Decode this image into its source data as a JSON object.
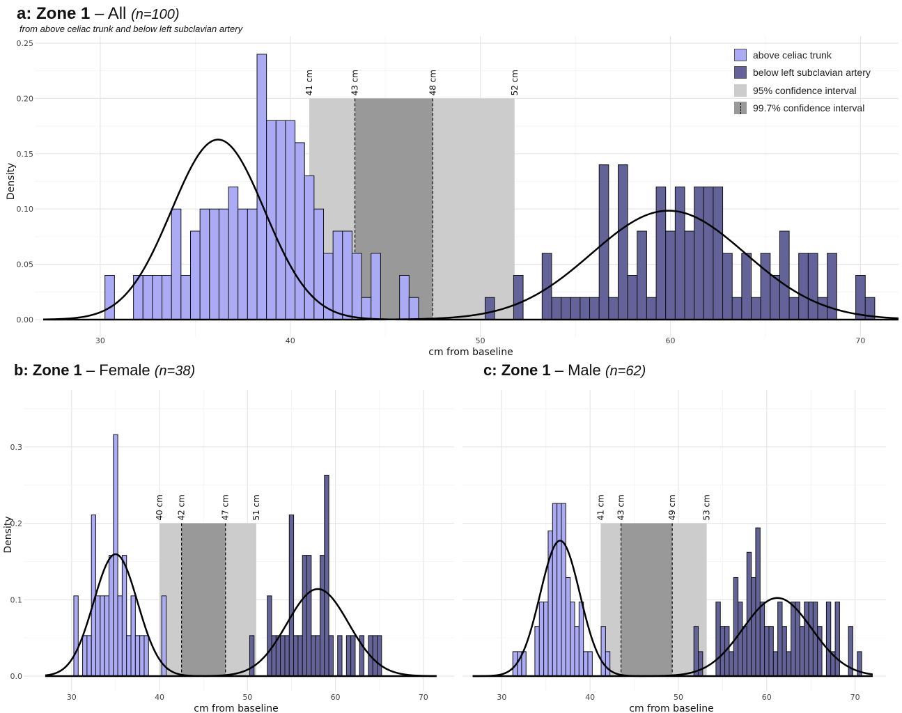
{
  "panels": {
    "a": {
      "label": "a:",
      "zone": "Zone 1",
      "dash": " – ",
      "group": "All",
      "n": "(n=100)",
      "subtitle": "from above celiac trunk and below left subclavian artery"
    },
    "b": {
      "label": "b:",
      "zone": "Zone 1",
      "dash": " – ",
      "group": "Female",
      "n": "(n=38)"
    },
    "c": {
      "label": "c:",
      "zone": "Zone 1",
      "dash": " – ",
      "group": "Male",
      "n": "(n=62)"
    }
  },
  "legend": [
    {
      "label": "above celiac trunk",
      "color": "#aaaaf5"
    },
    {
      "label": "below left subclavian artery",
      "color": "#636399"
    },
    {
      "label": "95% confidence interval",
      "color": "#cccccc"
    },
    {
      "label": "99.7% confidence interval",
      "color": "#999999"
    }
  ],
  "colors": {
    "above": "#aaaaf5",
    "below": "#636399",
    "ci95": "#cccccc",
    "ci997": "#999999"
  },
  "chart_data": [
    {
      "id": "a",
      "type": "bar",
      "xlabel": "cm from baseline",
      "ylabel": "Density",
      "xlim": [
        27,
        72
      ],
      "ylim": [
        0,
        0.25
      ],
      "xticks": [
        30,
        40,
        50,
        60,
        70
      ],
      "yticks": [
        0,
        0.05,
        0.1,
        0.15,
        0.2,
        0.25
      ],
      "ytick_labels": [
        "0.00",
        "0.05",
        "0.10",
        "0.15",
        "0.20",
        "0.25"
      ],
      "binwidth": 0.5,
      "ci95": [
        41,
        51.8
      ],
      "ci997": [
        43.4,
        47.5
      ],
      "ci_top": 0.2,
      "ci_labels": [
        {
          "x": 41,
          "text": "41 cm"
        },
        {
          "x": 43.4,
          "text": "43 cm"
        },
        {
          "x": 47.5,
          "text": "48 cm"
        },
        {
          "x": 51.8,
          "text": "52 cm"
        }
      ],
      "series": [
        {
          "name": "above celiac trunk",
          "start": 30.25,
          "density": [
            0.04,
            0,
            0,
            0.04,
            0.04,
            0.04,
            0.04,
            0.1,
            0.04,
            0.08,
            0.1,
            0.1,
            0.1,
            0.12,
            0.1,
            0.1,
            0.24,
            0.18,
            0.18,
            0.18,
            0.16,
            0.13,
            0.1,
            0.06,
            0.08,
            0.08,
            0.06,
            0.02,
            0.06,
            0,
            0,
            0.04,
            0.02
          ]
        },
        {
          "name": "below left subclavian artery",
          "start": 50.25,
          "density": [
            0.02,
            0,
            0,
            0.04,
            0,
            0,
            0.06,
            0.02,
            0.02,
            0.02,
            0.02,
            0.02,
            0.14,
            0.02,
            0.14,
            0.04,
            0.08,
            0.02,
            0.12,
            0.08,
            0.12,
            0.08,
            0.12,
            0.12,
            0.12,
            0.06,
            0.02,
            0.06,
            0.02,
            0.06,
            0.04,
            0.08,
            0.02,
            0.06,
            0.06,
            0.02,
            0.06,
            0,
            0,
            0.04,
            0.02
          ]
        }
      ],
      "curves": [
        {
          "name": "above celiac trunk",
          "mean": 36.2,
          "sd": 2.45
        },
        {
          "name": "below left subclavian artery",
          "mean": 59.9,
          "sd": 4.05
        }
      ]
    },
    {
      "id": "b",
      "type": "bar",
      "xlabel": "cm from baseline",
      "ylabel": "Density",
      "xlim": [
        25.5,
        73.5
      ],
      "ylim": [
        0,
        0.37
      ],
      "xticks": [
        30,
        40,
        50,
        60,
        70
      ],
      "yticks": [
        0,
        0.1,
        0.2,
        0.3
      ],
      "ytick_labels": [
        "0.0",
        "0.1",
        "0.2",
        "0.3"
      ],
      "binwidth": 0.5,
      "ci95": [
        40,
        51
      ],
      "ci997": [
        42.5,
        47.5
      ],
      "ci_top": 0.2,
      "ci_labels": [
        {
          "x": 40,
          "text": "40 cm"
        },
        {
          "x": 42.5,
          "text": "42 cm"
        },
        {
          "x": 47.5,
          "text": "47 cm"
        },
        {
          "x": 51,
          "text": "51 cm"
        }
      ],
      "series": [
        {
          "name": "above celiac trunk",
          "start": 30.25,
          "density": [
            0.105,
            0,
            0.053,
            0.053,
            0.211,
            0.105,
            0.105,
            0.105,
            0.158,
            0.316,
            0.105,
            0.158,
            0.053,
            0.105,
            0.053,
            0.053,
            0.053,
            0,
            0,
            0,
            0.105
          ]
        },
        {
          "name": "below left subclavian artery",
          "start": 50.25,
          "density": [
            0.053,
            0,
            0,
            0,
            0.105,
            0.053,
            0.053,
            0.053,
            0.053,
            0.211,
            0.053,
            0.053,
            0.158,
            0.158,
            0.053,
            0.053,
            0.158,
            0.263,
            0.053,
            0,
            0.053,
            0,
            0.053,
            0.053,
            0,
            0.053,
            0,
            0.053,
            0.053,
            0.053
          ]
        }
      ],
      "curves": [
        {
          "name": "above celiac trunk",
          "mean": 35.0,
          "sd": 2.5
        },
        {
          "name": "below left subclavian artery",
          "mean": 58.0,
          "sd": 3.5
        }
      ]
    },
    {
      "id": "c",
      "type": "bar",
      "xlabel": "cm from baseline",
      "ylabel": "",
      "xlim": [
        26.5,
        73.5
      ],
      "ylim": [
        0,
        0.37
      ],
      "xticks": [
        30,
        40,
        50,
        60,
        70
      ],
      "yticks": [
        0,
        0.1,
        0.2,
        0.3
      ],
      "ytick_labels": [],
      "binwidth": 0.5,
      "ci95": [
        41.2,
        53.2
      ],
      "ci997": [
        43.5,
        49.3
      ],
      "ci_top": 0.2,
      "ci_labels": [
        {
          "x": 41.2,
          "text": "41 cm"
        },
        {
          "x": 43.5,
          "text": "43 cm"
        },
        {
          "x": 49.3,
          "text": "49 cm"
        },
        {
          "x": 53.2,
          "text": "53 cm"
        }
      ],
      "series": [
        {
          "name": "above celiac trunk",
          "start": 31.25,
          "density": [
            0.032,
            0.032,
            0.032,
            0,
            0,
            0.065,
            0.097,
            0.097,
            0.19,
            0.226,
            0.226,
            0.226,
            0.129,
            0.097,
            0.065,
            0.097,
            0.032,
            0.032,
            0,
            0,
            0.065,
            0.032
          ]
        },
        {
          "name": "below left subclavian artery",
          "start": 51.75,
          "density": [
            0.065,
            0.032,
            0,
            0,
            0,
            0.097,
            0.065,
            0.065,
            0.032,
            0.129,
            0.097,
            0.065,
            0.162,
            0.129,
            0.194,
            0.097,
            0.065,
            0.065,
            0.032,
            0.097,
            0.065,
            0.032,
            0.097,
            0.097,
            0.065,
            0.097,
            0.097,
            0.097,
            0.065,
            0,
            0.097,
            0.032,
            0.097,
            0,
            0,
            0.065,
            0,
            0.032
          ]
        }
      ],
      "curves": [
        {
          "name": "above celiac trunk",
          "mean": 36.6,
          "sd": 2.25
        },
        {
          "name": "below left subclavian artery",
          "mean": 61.2,
          "sd": 3.9
        }
      ]
    }
  ]
}
